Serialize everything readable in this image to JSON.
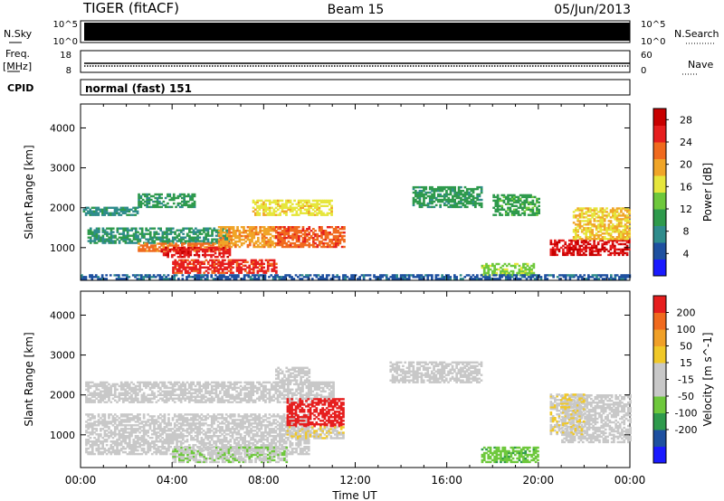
{
  "header": {
    "station": "TIGER (fitACF)",
    "beam": "Beam 15",
    "date": "05/Jun/2013"
  },
  "status_rows": {
    "nsky": {
      "label": "N.Sky",
      "top": "10^5",
      "bottom": "10^0"
    },
    "nsearch": {
      "label": "N.Search",
      "top": "10^5",
      "bottom": "10^0"
    },
    "freq": {
      "label": "Freq.",
      "unit": "[MHz]",
      "top": "18",
      "bottom": "8"
    },
    "nave": {
      "label": "Nave",
      "top": "60",
      "bottom": "0"
    },
    "cpid": {
      "label": "CPID",
      "value": "normal (fast) 151"
    }
  },
  "chart_data": [
    {
      "type": "heatmap",
      "title": "",
      "xlabel": "Time UT",
      "ylabel": "Slant Range [km]",
      "x_ticks": [
        "00:00",
        "04:00",
        "08:00",
        "12:00",
        "16:00",
        "20:00",
        "00:00"
      ],
      "y_ticks": [
        "1000",
        "2000",
        "3000",
        "4000"
      ],
      "ylim": [
        180,
        4600
      ],
      "colorbar": {
        "label": "Power [dB]",
        "ticks": [
          "4",
          "8",
          "12",
          "16",
          "20",
          "24",
          "28"
        ],
        "range": [
          0,
          30
        ],
        "colors": [
          "#1a1aff",
          "#1e50a0",
          "#2f8c8c",
          "#2e9a4c",
          "#6ec83c",
          "#e6e63c",
          "#f0a528",
          "#f06a1e",
          "#e61e1e",
          "#c80000"
        ]
      },
      "blobs": [
        {
          "t0": 0.3,
          "t1": 6.5,
          "r0": 1100,
          "r1": 1500,
          "value": 9
        },
        {
          "t0": 0.1,
          "t1": 2.5,
          "r0": 1800,
          "r1": 2000,
          "value": 8
        },
        {
          "t0": 2.5,
          "t1": 5.0,
          "r0": 2000,
          "r1": 2350,
          "value": 10
        },
        {
          "t0": 2.5,
          "t1": 6.5,
          "r0": 900,
          "r1": 1100,
          "value": 22
        },
        {
          "t0": 3.5,
          "t1": 6.5,
          "r0": 750,
          "r1": 1000,
          "value": 26
        },
        {
          "t0": 4.0,
          "t1": 8.5,
          "r0": 350,
          "r1": 700,
          "value": 25
        },
        {
          "t0": 6.0,
          "t1": 8.5,
          "r0": 1000,
          "r1": 1500,
          "value": 20
        },
        {
          "t0": 7.5,
          "t1": 11.0,
          "r0": 1800,
          "r1": 2200,
          "value": 17
        },
        {
          "t0": 8.5,
          "t1": 11.5,
          "r0": 1000,
          "r1": 1500,
          "value": 23
        },
        {
          "t0": 14.5,
          "t1": 17.5,
          "r0": 2000,
          "r1": 2500,
          "value": 10
        },
        {
          "t0": 17.5,
          "t1": 19.8,
          "r0": 300,
          "r1": 600,
          "value": 14
        },
        {
          "t0": 18.0,
          "t1": 20.0,
          "r0": 1800,
          "r1": 2300,
          "value": 11
        },
        {
          "t0": 20.5,
          "t1": 24.0,
          "r0": 800,
          "r1": 1200,
          "value": 27
        },
        {
          "t0": 21.5,
          "t1": 24.0,
          "r0": 1200,
          "r1": 2000,
          "value": 18
        },
        {
          "t0": 0.0,
          "t1": 24.0,
          "r0": 200,
          "r1": 330,
          "value": 5
        }
      ]
    },
    {
      "type": "heatmap",
      "title": "",
      "xlabel": "Time UT",
      "ylabel": "Slant Range [km]",
      "x_ticks": [
        "00:00",
        "04:00",
        "08:00",
        "12:00",
        "16:00",
        "20:00",
        "00:00"
      ],
      "y_ticks": [
        "1000",
        "2000",
        "3000",
        "4000"
      ],
      "ylim": [
        180,
        4600
      ],
      "colorbar": {
        "label": "Velocity [m s^-1]",
        "ticks": [
          "200",
          "100",
          "50",
          "15",
          "-15",
          "-50",
          "-100",
          "-200"
        ],
        "range": [
          -250,
          250
        ],
        "colors": [
          "#1a1aff",
          "#1e50a0",
          "#2e9a4c",
          "#6ec83c",
          "#c8c8c8",
          "#c8c8c8",
          "#f0c828",
          "#f0a028",
          "#f06a1e",
          "#e61e1e"
        ]
      },
      "blobs": [
        {
          "t0": 0.2,
          "t1": 10.0,
          "r0": 500,
          "r1": 1500,
          "value": 0
        },
        {
          "t0": 0.2,
          "t1": 11.0,
          "r0": 1800,
          "r1": 2300,
          "value": 0
        },
        {
          "t0": 4.0,
          "t1": 9.0,
          "r0": 300,
          "r1": 700,
          "value": -40
        },
        {
          "t0": 9.0,
          "t1": 11.5,
          "r0": 1200,
          "r1": 1900,
          "value": 230
        },
        {
          "t0": 9.0,
          "t1": 11.5,
          "r0": 900,
          "r1": 1200,
          "value": 40
        },
        {
          "t0": 8.5,
          "t1": 10.0,
          "r0": 2300,
          "r1": 2700,
          "value": 0
        },
        {
          "t0": 13.5,
          "t1": 17.5,
          "r0": 2300,
          "r1": 2800,
          "value": 0
        },
        {
          "t0": 17.5,
          "t1": 20.0,
          "r0": 300,
          "r1": 700,
          "value": -80
        },
        {
          "t0": 21.0,
          "t1": 24.0,
          "r0": 800,
          "r1": 2000,
          "value": 0
        },
        {
          "t0": 20.5,
          "t1": 22.0,
          "r0": 1000,
          "r1": 2000,
          "value": 40
        }
      ]
    }
  ]
}
